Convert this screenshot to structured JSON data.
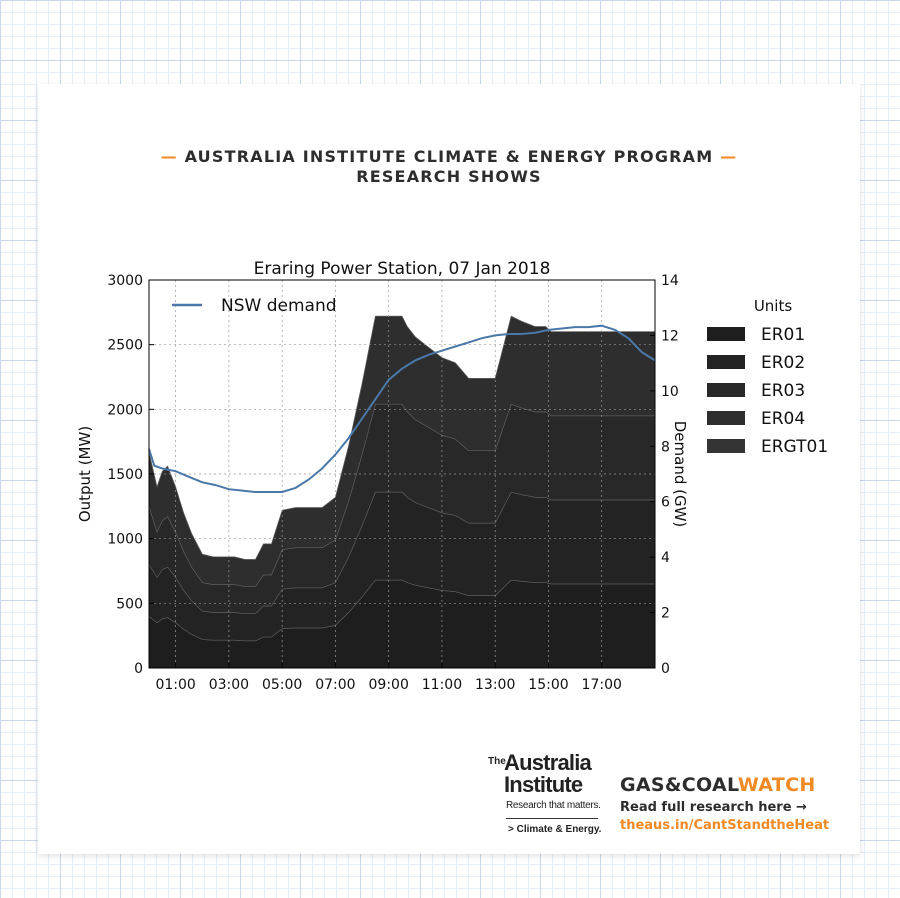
{
  "header": {
    "line1": "AUSTRALIA INSTITUTE CLIMATE & ENERGY PROGRAM",
    "line2": "RESEARCH SHOWS",
    "dash": "—"
  },
  "logo": {
    "the": "The",
    "name_line1": "Australia",
    "name_line2": "Institute",
    "tagline": "Research that matters.",
    "sub": "> Climate & Energy."
  },
  "gascoalwatch": {
    "title_part1": "GAS&COAL",
    "title_part2": "WATCH",
    "read_text": "Read full research here →",
    "url": "theaus.in/CantStandtheHeat"
  },
  "colors": {
    "accent": "#f08a24",
    "demand_line": "#4a78a8",
    "units": [
      "#1e1e1e",
      "#232323",
      "#282828",
      "#2e2e2e",
      "#343434"
    ]
  },
  "chart_data": {
    "type": "area",
    "stacked": true,
    "title": "Eraring Power Station, 07 Jan 2018",
    "ylabel": "Output (MW)",
    "y2label": "Demand (GW)",
    "xlim": [
      0,
      19
    ],
    "ylim": [
      0,
      3000
    ],
    "y2lim": [
      0,
      14
    ],
    "x_ticks": [
      1,
      3,
      5,
      7,
      9,
      11,
      13,
      15,
      17
    ],
    "x_tick_labels": [
      "01:00",
      "03:00",
      "05:00",
      "07:00",
      "09:00",
      "11:00",
      "13:00",
      "15:00",
      "17:00"
    ],
    "y_ticks": [
      0,
      500,
      1000,
      1500,
      2000,
      2500,
      3000
    ],
    "y_tick_labels": [
      "0",
      "500",
      "1000",
      "1500",
      "2000",
      "2500",
      "3000"
    ],
    "y2_ticks": [
      0,
      2,
      4,
      6,
      8,
      10,
      12,
      14
    ],
    "y2_tick_labels": [
      "0",
      "2",
      "4",
      "6",
      "8",
      "10",
      "12",
      "14"
    ],
    "grid": true,
    "legend_title": "Units",
    "legend_position": "right",
    "line_legend_position": "top-left",
    "x": [
      0,
      0.3,
      0.5,
      0.7,
      1.0,
      1.3,
      1.6,
      2.0,
      2.4,
      2.8,
      3.2,
      3.6,
      4.0,
      4.3,
      4.6,
      5.0,
      5.5,
      6.0,
      6.5,
      7.0,
      7.5,
      8.0,
      8.5,
      9.0,
      9.5,
      9.7,
      10.0,
      10.5,
      11.0,
      11.5,
      12.0,
      12.5,
      13.0,
      13.3,
      13.6,
      14.0,
      14.5,
      14.9,
      15.1,
      15.5,
      16.0,
      17.0,
      18.0,
      19.0
    ],
    "series": [
      {
        "name": "ER01",
        "values": [
          400,
          350,
          380,
          390,
          350,
          300,
          260,
          220,
          215,
          215,
          215,
          210,
          210,
          240,
          240,
          305,
          310,
          310,
          310,
          330,
          430,
          550,
          680,
          680,
          680,
          660,
          640,
          620,
          600,
          590,
          560,
          560,
          560,
          620,
          680,
          670,
          660,
          660,
          650,
          650,
          650,
          650,
          650,
          650
        ]
      },
      {
        "name": "ER02",
        "values": [
          400,
          350,
          380,
          390,
          350,
          300,
          260,
          220,
          215,
          215,
          215,
          210,
          210,
          240,
          240,
          305,
          310,
          310,
          310,
          330,
          430,
          550,
          680,
          680,
          680,
          660,
          640,
          620,
          600,
          590,
          560,
          560,
          560,
          620,
          680,
          670,
          660,
          660,
          650,
          650,
          650,
          650,
          650,
          650
        ]
      },
      {
        "name": "ER03",
        "values": [
          450,
          350,
          380,
          390,
          350,
          300,
          260,
          220,
          215,
          215,
          215,
          210,
          210,
          240,
          240,
          305,
          310,
          310,
          310,
          330,
          430,
          550,
          680,
          680,
          680,
          660,
          640,
          620,
          600,
          590,
          560,
          560,
          560,
          620,
          680,
          670,
          660,
          660,
          650,
          650,
          650,
          650,
          650,
          650
        ]
      },
      {
        "name": "ER04",
        "values": [
          420,
          350,
          380,
          390,
          350,
          300,
          260,
          220,
          215,
          215,
          215,
          210,
          210,
          240,
          240,
          305,
          310,
          310,
          310,
          330,
          430,
          550,
          680,
          680,
          680,
          660,
          640,
          620,
          600,
          590,
          560,
          560,
          560,
          620,
          680,
          670,
          660,
          660,
          650,
          650,
          650,
          650,
          650,
          650
        ]
      },
      {
        "name": "ERGT01",
        "values": [
          0,
          0,
          0,
          0,
          0,
          0,
          0,
          0,
          0,
          0,
          0,
          0,
          0,
          0,
          0,
          0,
          0,
          0,
          0,
          0,
          0,
          0,
          0,
          0,
          0,
          0,
          0,
          0,
          0,
          0,
          0,
          0,
          0,
          0,
          0,
          0,
          0,
          0,
          0,
          0,
          0,
          0,
          0,
          0
        ]
      }
    ],
    "line_series": {
      "name": "NSW demand",
      "axis": "right",
      "x": [
        0,
        0.2,
        0.5,
        1.0,
        1.5,
        2.0,
        2.5,
        3.0,
        3.5,
        4.0,
        4.5,
        5.0,
        5.5,
        6.0,
        6.5,
        7.0,
        7.5,
        8.0,
        8.5,
        9.0,
        9.5,
        10.0,
        10.5,
        11.0,
        11.5,
        12.0,
        12.5,
        13.0,
        13.5,
        14.0,
        14.5,
        15.0,
        15.5,
        16.0,
        16.5,
        17.0,
        17.5,
        18.0,
        18.5,
        19.0
      ],
      "values": [
        7.9,
        7.3,
        7.2,
        7.1,
        6.9,
        6.7,
        6.6,
        6.45,
        6.4,
        6.35,
        6.35,
        6.35,
        6.5,
        6.8,
        7.2,
        7.7,
        8.3,
        9.0,
        9.7,
        10.4,
        10.8,
        11.1,
        11.3,
        11.45,
        11.6,
        11.75,
        11.9,
        12.0,
        12.05,
        12.05,
        12.1,
        12.2,
        12.25,
        12.3,
        12.3,
        12.35,
        12.2,
        11.9,
        11.4,
        11.1
      ]
    }
  }
}
